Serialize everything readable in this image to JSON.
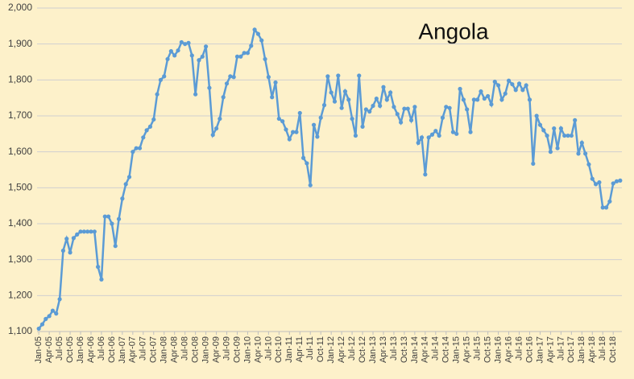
{
  "chart_data": {
    "type": "line",
    "title": "Angola",
    "categories": [
      "Jan-05",
      null,
      null,
      "Apr-05",
      null,
      null,
      "Jul-05",
      null,
      null,
      "Oct-05",
      null,
      null,
      "Jan-06",
      null,
      null,
      "Apr-06",
      null,
      null,
      "Jul-06",
      null,
      null,
      "Oct-06",
      null,
      null,
      "Jan-07",
      null,
      null,
      "Apr-07",
      null,
      null,
      "Jul-07",
      null,
      null,
      "Oct-07",
      null,
      null,
      "Jan-08",
      null,
      null,
      "Apr-08",
      null,
      null,
      "Jul-08",
      null,
      null,
      "Oct-08",
      null,
      null,
      "Jan-09",
      null,
      null,
      "Apr-09",
      null,
      null,
      "Jul-09",
      null,
      null,
      "Oct-09",
      null,
      null,
      "Jan-10",
      null,
      null,
      "Apr-10",
      null,
      null,
      "Jul-10",
      null,
      null,
      "Oct-10",
      null,
      null,
      "Jan-11",
      null,
      null,
      "Apr-11",
      null,
      null,
      "Jul-11",
      null,
      null,
      "Oct-11",
      null,
      null,
      "Jan-12",
      null,
      null,
      "Apr-12",
      null,
      null,
      "Jul-12",
      null,
      null,
      "Oct-12",
      null,
      null,
      "Jan-13",
      null,
      null,
      "Apr-13",
      null,
      null,
      "Jul-13",
      null,
      null,
      "Oct-13",
      null,
      null,
      "Jan-14",
      null,
      null,
      "Apr-14",
      null,
      null,
      "Jul-14",
      null,
      null,
      "Oct-14",
      null,
      null,
      "Jan-15",
      null,
      null,
      "Apr-15",
      null,
      null,
      "Jul-15",
      null,
      null,
      "Oct-15",
      null,
      null,
      "Jan-16",
      null,
      null,
      "Apr-16",
      null,
      null,
      "Jul-16",
      null,
      null,
      "Oct-16",
      null,
      null,
      "Jan-17",
      null,
      null,
      "Apr-17",
      null,
      null,
      "Jul-17",
      null,
      null,
      "Oct-17",
      null,
      null,
      "Jan-18",
      null,
      null,
      "Apr-18",
      null,
      null,
      "Jul-18",
      null,
      null,
      "Oct-18",
      null,
      null
    ],
    "values": [
      1108,
      1120,
      1135,
      1143,
      1158,
      1150,
      1190,
      1325,
      1358,
      1320,
      1360,
      1370,
      1378,
      1378,
      1378,
      1378,
      1378,
      1280,
      1245,
      1420,
      1420,
      1400,
      1338,
      1413,
      1470,
      1510,
      1530,
      1600,
      1610,
      1610,
      1640,
      1660,
      1670,
      1690,
      1760,
      1800,
      1810,
      1858,
      1880,
      1868,
      1882,
      1905,
      1900,
      1903,
      1868,
      1760,
      1855,
      1865,
      1893,
      1778,
      1647,
      1665,
      1692,
      1752,
      1790,
      1810,
      1808,
      1865,
      1865,
      1875,
      1875,
      1895,
      1940,
      1928,
      1910,
      1858,
      1808,
      1752,
      1793,
      1692,
      1685,
      1662,
      1635,
      1655,
      1655,
      1708,
      1583,
      1568,
      1507,
      1675,
      1642,
      1695,
      1730,
      1810,
      1765,
      1740,
      1812,
      1722,
      1768,
      1745,
      1692,
      1645,
      1812,
      1670,
      1718,
      1712,
      1728,
      1748,
      1728,
      1780,
      1745,
      1765,
      1725,
      1705,
      1682,
      1720,
      1720,
      1688,
      1725,
      1625,
      1640,
      1537,
      1640,
      1648,
      1658,
      1645,
      1695,
      1725,
      1722,
      1655,
      1650,
      1775,
      1745,
      1718,
      1655,
      1745,
      1745,
      1768,
      1748,
      1755,
      1732,
      1795,
      1785,
      1745,
      1762,
      1798,
      1788,
      1772,
      1790,
      1772,
      1785,
      1745,
      1567,
      1700,
      1675,
      1660,
      1645,
      1600,
      1665,
      1610,
      1665,
      1645,
      1645,
      1645,
      1688,
      1595,
      1625,
      1595,
      1565,
      1525,
      1510,
      1515,
      1445,
      1445,
      1462,
      1512,
      1518,
      1520
    ],
    "color": "#5b9bd5",
    "ylim": [
      1100,
      2000
    ],
    "yticks": [
      {
        "value": 1100,
        "label": "1,100"
      },
      {
        "value": 1200,
        "label": "1,200"
      },
      {
        "value": 1300,
        "label": "1,300"
      },
      {
        "value": 1400,
        "label": "1,400"
      },
      {
        "value": 1500,
        "label": "1,500"
      },
      {
        "value": 1600,
        "label": "1,600"
      },
      {
        "value": 1700,
        "label": "1,700"
      },
      {
        "value": 1800,
        "label": "1,800"
      },
      {
        "value": 1900,
        "label": "1,900"
      },
      {
        "value": 2000,
        "label": "2,000"
      }
    ],
    "grid": true
  }
}
